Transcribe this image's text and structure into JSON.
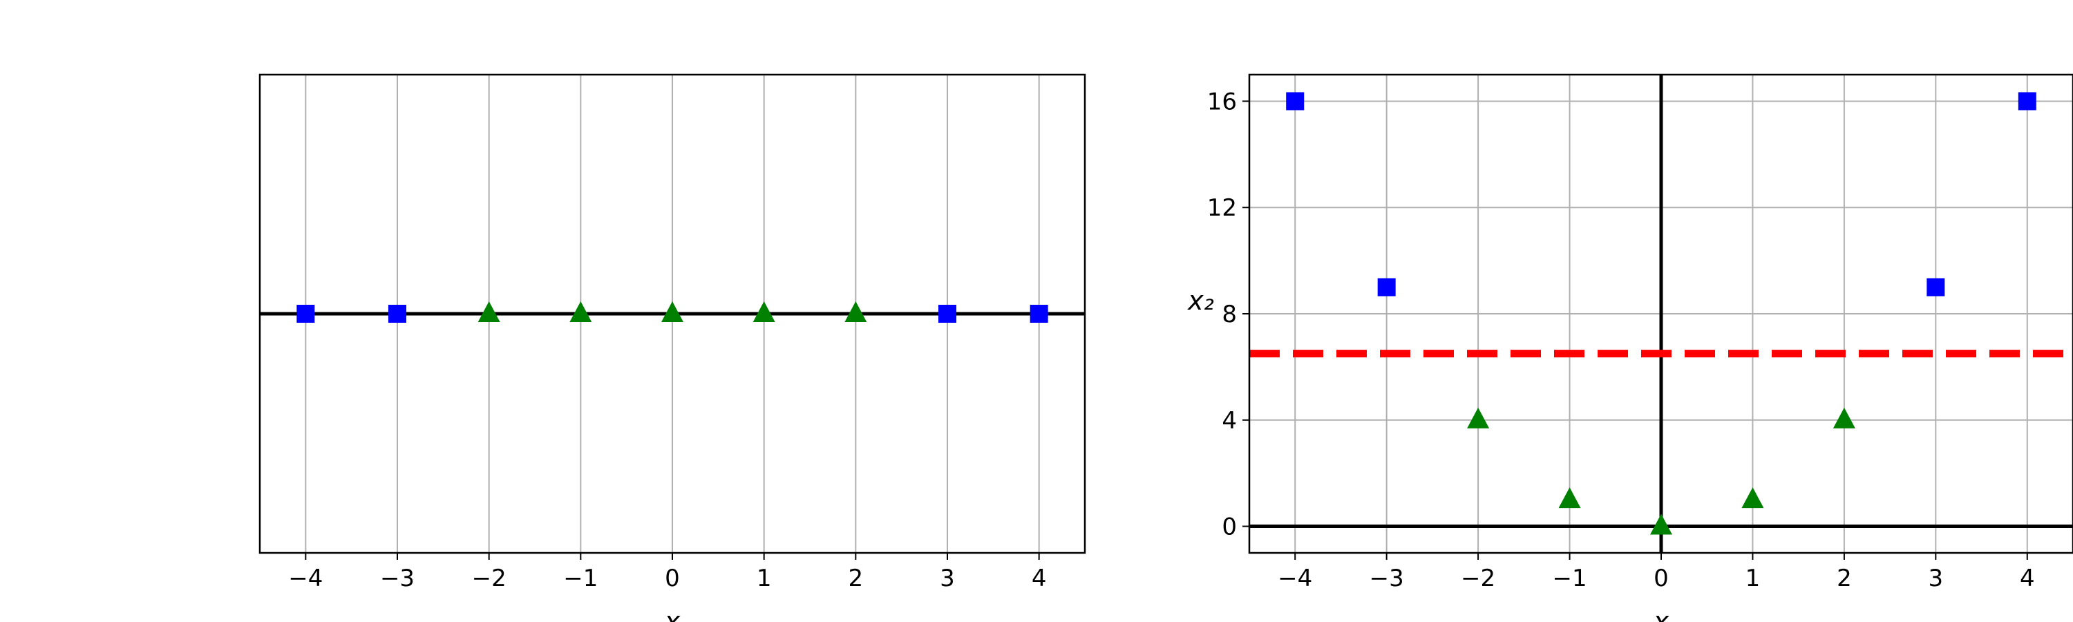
{
  "chart_data": [
    {
      "type": "scatter",
      "title": "",
      "xlabel": "x",
      "ylabel": "",
      "xlim": [
        -4.5,
        4.5
      ],
      "ylim": [
        -0.2,
        0.2
      ],
      "x_ticks": [
        -4,
        -3,
        -2,
        -1,
        0,
        1,
        2,
        3,
        4
      ],
      "x_tick_labels": [
        "−4",
        "−3",
        "−2",
        "−1",
        "0",
        "1",
        "2",
        "3",
        "4"
      ],
      "y_ticks": [],
      "y_tick_labels": [],
      "grid": "vertical",
      "axis_lines": {
        "horizontal_at_y": 0
      },
      "series": [
        {
          "marker": "square",
          "color": "#0000ff",
          "x": [
            -4,
            -3,
            3,
            4
          ],
          "y": [
            0,
            0,
            0,
            0
          ]
        },
        {
          "marker": "triangle",
          "color": "#008000",
          "x": [
            -2,
            -1,
            0,
            1,
            2
          ],
          "y": [
            0,
            0,
            0,
            0,
            0
          ]
        }
      ]
    },
    {
      "type": "scatter",
      "title": "",
      "xlabel": "x",
      "ylabel": "x₂",
      "xlim": [
        -4.5,
        4.5
      ],
      "ylim": [
        -1,
        17
      ],
      "x_ticks": [
        -4,
        -3,
        -2,
        -1,
        0,
        1,
        2,
        3,
        4
      ],
      "x_tick_labels": [
        "−4",
        "−3",
        "−2",
        "−1",
        "0",
        "1",
        "2",
        "3",
        "4"
      ],
      "y_ticks": [
        0,
        4,
        8,
        12,
        16
      ],
      "y_tick_labels": [
        "0",
        "4",
        "8",
        "12",
        "16"
      ],
      "grid": "both",
      "axis_lines": {
        "horizontal_at_y": 0,
        "vertical_at_x": 0
      },
      "reference_lines": [
        {
          "orientation": "horizontal",
          "y": 6.5,
          "style": "dashed",
          "color": "#ff0000"
        }
      ],
      "series": [
        {
          "marker": "square",
          "color": "#0000ff",
          "x": [
            -4,
            -3,
            3,
            4
          ],
          "y": [
            16,
            9,
            9,
            16
          ]
        },
        {
          "marker": "triangle",
          "color": "#008000",
          "x": [
            -2,
            -1,
            0,
            1,
            2
          ],
          "y": [
            4,
            1,
            0,
            1,
            4
          ]
        }
      ]
    }
  ]
}
